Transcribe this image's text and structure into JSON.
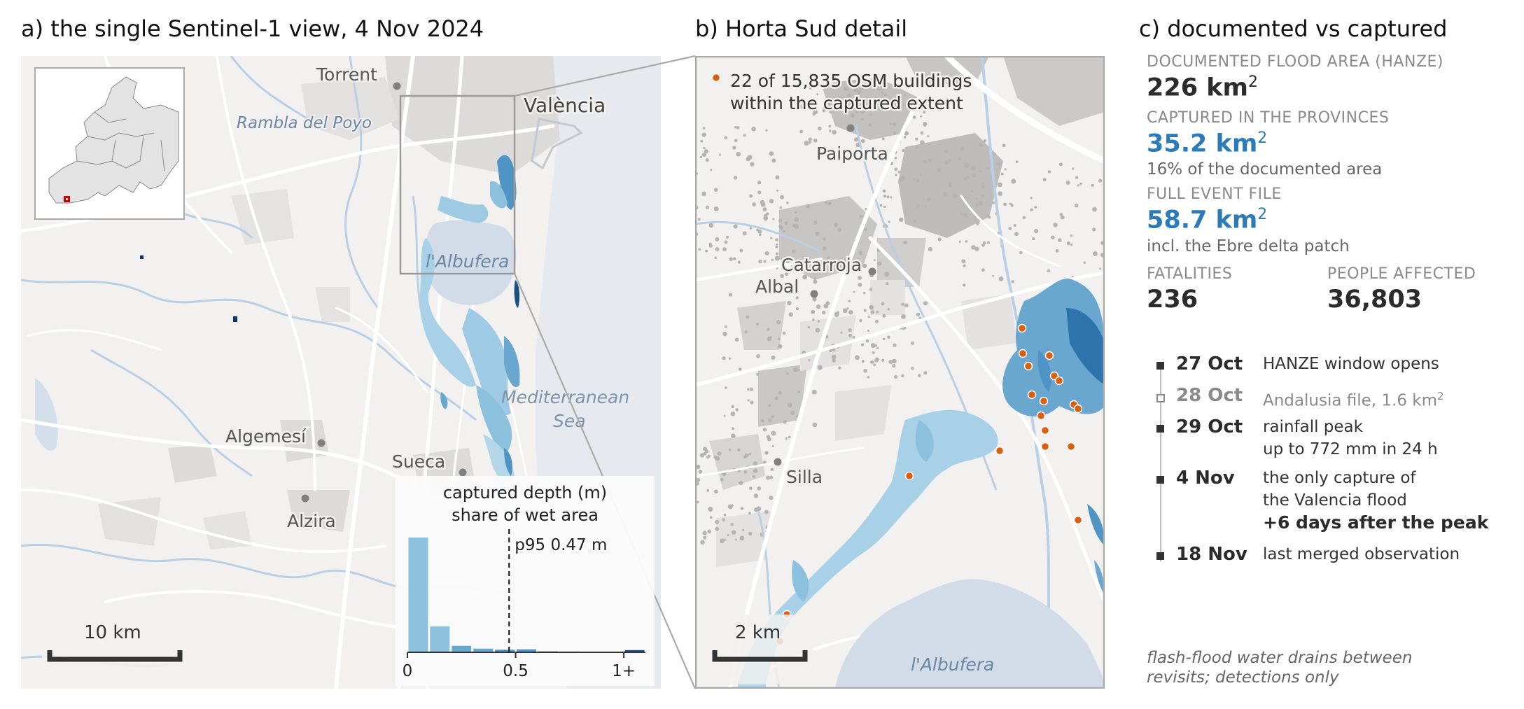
{
  "panel_a": {
    "title": "a) the single Sentinel-1 view, 4 Nov 2024",
    "places": {
      "torrent": "Torrent",
      "valencia": "València",
      "algemesi": "Algemesí",
      "sueca": "Sueca",
      "alzira": "Alzira"
    },
    "water_labels": {
      "rambla": "Rambla del Poyo",
      "albufera": "l'Albufera",
      "sea_line1": "Mediterranean",
      "sea_line2": "Sea"
    },
    "scalebar": "10 km"
  },
  "depth_histogram": {
    "title_line1": "captured depth (m)",
    "title_line2": "share of wet area",
    "p95_label": "p95 0.47 m",
    "chart_data": {
      "type": "bar",
      "bins": [
        [
          0,
          0.1
        ],
        [
          0.1,
          0.2
        ],
        [
          0.2,
          0.3
        ],
        [
          0.3,
          0.4
        ],
        [
          0.4,
          0.5
        ],
        [
          0.5,
          0.6
        ],
        [
          0.6,
          0.7
        ],
        [
          0.7,
          0.8
        ],
        [
          0.8,
          0.9
        ],
        [
          0.9,
          1.0
        ],
        [
          1.0,
          1.1
        ]
      ],
      "values": [
        0.62,
        0.14,
        0.035,
        0.02,
        0.014,
        0.016,
        0.005,
        0.004,
        0.003,
        0.003,
        0.012
      ],
      "p95": 0.47,
      "xlim": [
        0,
        1.1
      ],
      "xticks": [
        0,
        0.5,
        1.0
      ],
      "xtick_labels": [
        "0",
        "0.5",
        "1+"
      ],
      "colors": [
        "#8cc1de",
        "#8cc1de",
        "#6aa7cf",
        "#6aa7cf",
        "#4f94c4",
        "#4f94c4",
        "#3b82b8",
        "#2f73ad",
        "#2166a2",
        "#15568f",
        "#1b4f82"
      ]
    }
  },
  "panel_b": {
    "title": "b) Horta Sud detail",
    "legend": {
      "line1": "22 of 15,835 OSM buildings",
      "line2": "within the captured extent"
    },
    "places": {
      "paiporta": "Paiporta",
      "catarroja": "Catarroja",
      "albal": "Albal",
      "silla": "Silla"
    },
    "albufera": "l'Albufera",
    "scalebar": "2 km",
    "building_color": "#d95f0e"
  },
  "panel_c": {
    "title": "c) documented vs captured",
    "documented_label": "DOCUMENTED FLOOD AREA (HANZE)",
    "documented_value": "226 km",
    "captured_label": "CAPTURED IN THE PROVINCES",
    "captured_value": "35.2 km",
    "captured_note": "16% of the documented area",
    "full_label": "FULL EVENT FILE",
    "full_value": "58.7 km",
    "full_note": "incl. the Ebre delta patch",
    "fatalities_label": "FATALITIES",
    "fatalities_value": "236",
    "affected_label": "PEOPLE AFFECTED",
    "affected_value": "36,803",
    "sup": "2",
    "accent": "#2b7bb9"
  },
  "timeline": [
    {
      "date": "27 Oct",
      "lines": [
        "HANZE window opens"
      ]
    },
    {
      "date": "28 Oct",
      "lines": [
        "Andalusia file, 1.6 km"
      ],
      "sup": "2"
    },
    {
      "date": "29 Oct",
      "lines": [
        "rainfall peak",
        "up to 772 mm in 24 h"
      ]
    },
    {
      "date": "4 Nov",
      "lines": [
        "the only capture of",
        "the Valencia flood"
      ],
      "bold_line": "+6 days after the peak"
    },
    {
      "date": "18 Nov",
      "lines": [
        "last merged observation"
      ]
    }
  ],
  "footnote": {
    "line1": "flash-flood water drains between",
    "line2": "revisits; detections only"
  }
}
